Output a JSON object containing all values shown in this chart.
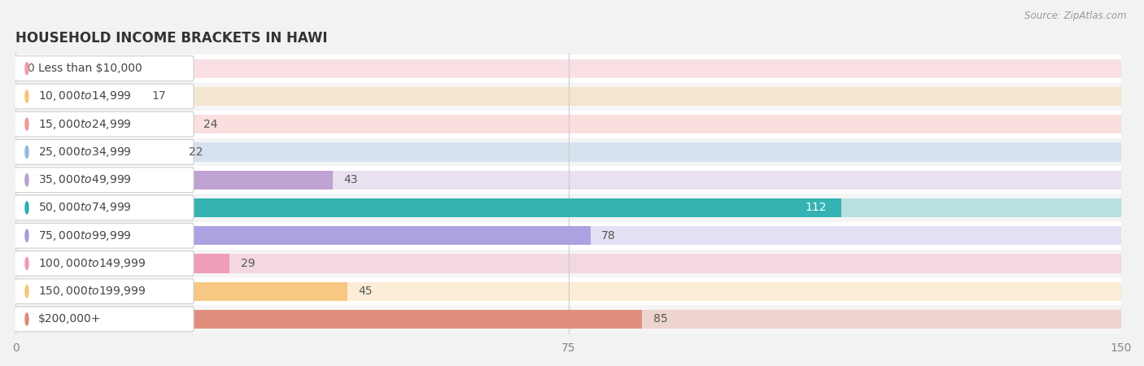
{
  "title": "HOUSEHOLD INCOME BRACKETS IN HAWI",
  "source": "Source: ZipAtlas.com",
  "categories": [
    "Less than $10,000",
    "$10,000 to $14,999",
    "$15,000 to $24,999",
    "$25,000 to $34,999",
    "$35,000 to $49,999",
    "$50,000 to $74,999",
    "$75,000 to $99,999",
    "$100,000 to $149,999",
    "$150,000 to $199,999",
    "$200,000+"
  ],
  "values": [
    0,
    17,
    24,
    22,
    43,
    112,
    78,
    29,
    45,
    85
  ],
  "bar_colors": [
    "#f09aaa",
    "#f8c47a",
    "#f09898",
    "#98b8e0",
    "#bc9ed0",
    "#2ab0b0",
    "#a89ce0",
    "#f098b8",
    "#f8c47a",
    "#e08878"
  ],
  "xlim": [
    0,
    150
  ],
  "xticks": [
    0,
    75,
    150
  ],
  "background_color": "#f2f2f2",
  "row_colors": [
    "#ffffff",
    "#f5f5f5"
  ],
  "title_fontsize": 12,
  "tick_fontsize": 10,
  "value_label_fontsize": 10,
  "category_fontsize": 10,
  "bar_height": 0.68,
  "bar_alpha_bg": 0.3
}
